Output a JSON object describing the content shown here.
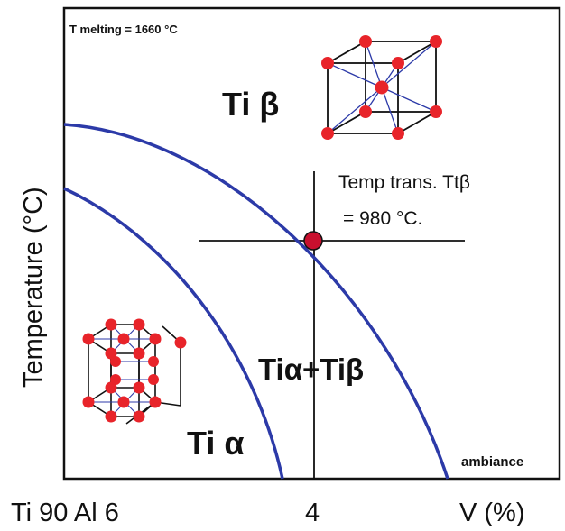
{
  "diagram": {
    "melting_note": "T melting = 1660 °C",
    "phase_beta_label": "Ti β",
    "phase_alpha_label": "Ti α",
    "phase_mixed_label": "Tiα+Tiβ",
    "transition_note_line1": "Temp trans. Ttβ",
    "transition_note_line2": "= 980 °C.",
    "ambient_label": "ambiance",
    "y_axis_label": "Temperature (°C)",
    "x_left_label": "Ti 90 Al 6",
    "x_mid_label": "4",
    "x_right_label": "V (%)",
    "colors": {
      "curve": "#2c3aa8",
      "atom": "#e8242a",
      "transition_point": "#c8102e",
      "cross_lines": "#111111",
      "frame": "#111111"
    }
  }
}
